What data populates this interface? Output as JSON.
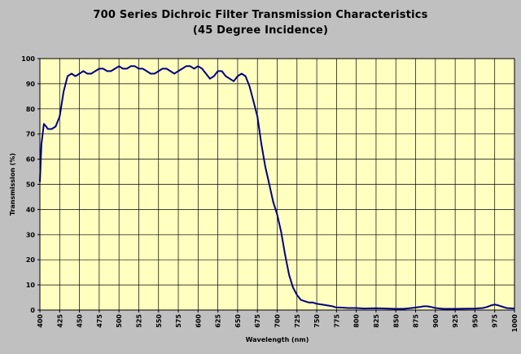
{
  "chart_data": {
    "type": "line",
    "title_line1": "700 Series Dichroic Filter Transmission Characteristics",
    "title_line2": "(45 Degree Incidence)",
    "xlabel": "Wavelength (nm)",
    "ylabel": "Transmission (%)",
    "xlim": [
      400,
      1000
    ],
    "ylim": [
      0,
      100
    ],
    "x_ticks": [
      "400",
      "425",
      "450",
      "475",
      "500",
      "525",
      "550",
      "575",
      "600",
      "625",
      "650",
      "675",
      "700",
      "725",
      "750",
      "775",
      "800",
      "825",
      "850",
      "875",
      "900",
      "925",
      "950",
      "975",
      "1000"
    ],
    "y_ticks": [
      "0",
      "10",
      "20",
      "30",
      "40",
      "50",
      "60",
      "70",
      "80",
      "90",
      "100"
    ],
    "grid": true,
    "colors": {
      "plot_bg": "#ffffc0",
      "line": "#000080",
      "page_bg": "#c0c0c0",
      "grid": "#000000"
    },
    "series": [
      {
        "x": [
          400,
          402,
          405,
          408,
          410,
          415,
          420,
          425,
          430,
          435,
          440,
          445,
          450,
          455,
          460,
          465,
          470,
          475,
          480,
          485,
          490,
          495,
          500,
          505,
          510,
          515,
          520,
          525,
          530,
          535,
          540,
          545,
          550,
          555,
          560,
          565,
          570,
          575,
          580,
          585,
          590,
          595,
          600,
          605,
          610,
          615,
          620,
          625,
          630,
          635,
          640,
          645,
          650,
          655,
          660,
          665,
          670,
          675,
          680,
          685,
          690,
          695,
          700,
          705,
          710,
          715,
          720,
          725,
          730,
          735,
          740,
          745,
          750,
          760,
          770,
          775,
          780,
          790,
          800,
          810,
          825,
          850,
          860,
          870,
          875,
          880,
          885,
          890,
          895,
          900,
          910,
          925,
          950,
          960,
          965,
          970,
          975,
          980,
          990,
          1000
        ],
        "y": [
          51,
          66,
          74,
          73,
          72,
          72,
          73,
          77,
          87,
          93,
          94,
          93,
          94,
          95,
          94,
          94,
          95,
          96,
          96,
          95,
          95,
          96,
          97,
          96,
          96,
          97,
          97,
          96,
          96,
          95,
          94,
          94,
          95,
          96,
          96,
          95,
          94,
          95,
          96,
          97,
          97,
          96,
          97,
          96,
          94,
          92,
          93,
          95,
          95,
          93,
          92,
          91,
          93,
          94,
          93,
          89,
          83,
          77,
          66,
          57,
          50,
          43,
          38,
          31,
          22,
          14,
          9,
          6,
          4,
          3.5,
          3,
          3,
          2.5,
          2,
          1.5,
          1,
          1,
          0.8,
          0.8,
          0.6,
          0.7,
          0.5,
          0.5,
          0.8,
          1,
          1.2,
          1.5,
          1.5,
          1.2,
          0.8,
          0.5,
          0.5,
          0.6,
          0.8,
          1.2,
          1.8,
          2.2,
          1.8,
          0.8,
          0.6
        ]
      }
    ]
  }
}
